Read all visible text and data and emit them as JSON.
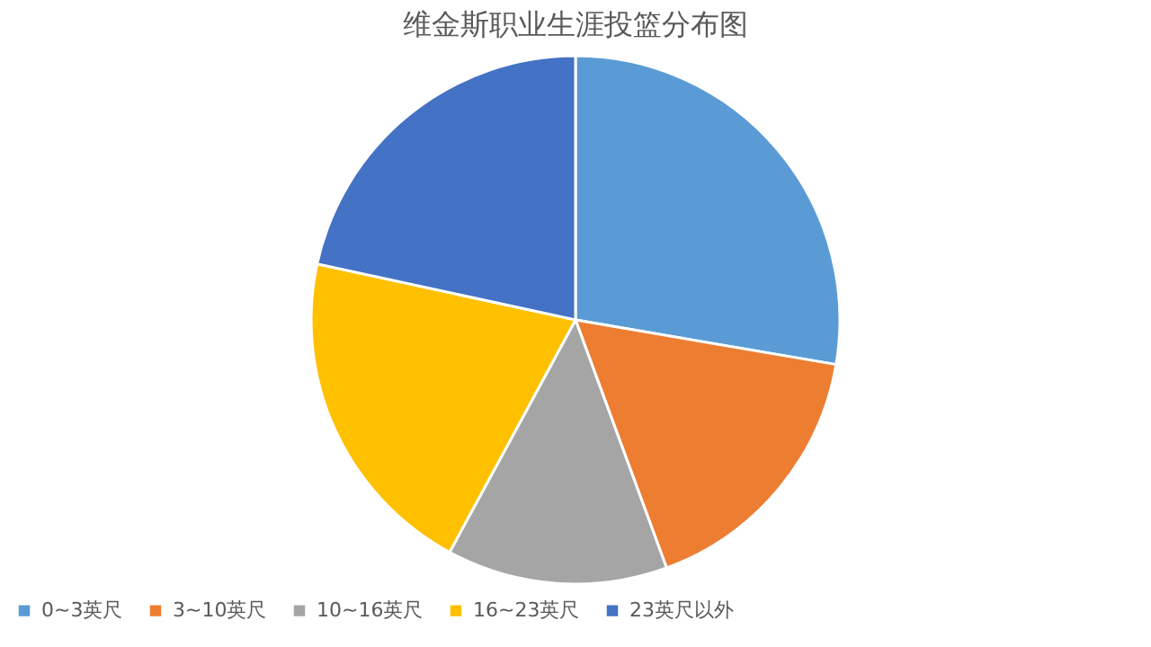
{
  "chart_data": {
    "type": "pie",
    "title": "维金斯职业生涯投篮分布图",
    "categories": [
      "0~3英尺",
      "3~10英尺",
      "10~16英尺",
      "16~23英尺",
      "23英尺以外"
    ],
    "values": [
      27.7,
      16.7,
      13.5,
      20.5,
      21.6
    ],
    "colors": [
      "#5b9bd5",
      "#ed7d31",
      "#a5a5a5",
      "#ffc000",
      "#4472c4"
    ],
    "legend": "bottom"
  }
}
